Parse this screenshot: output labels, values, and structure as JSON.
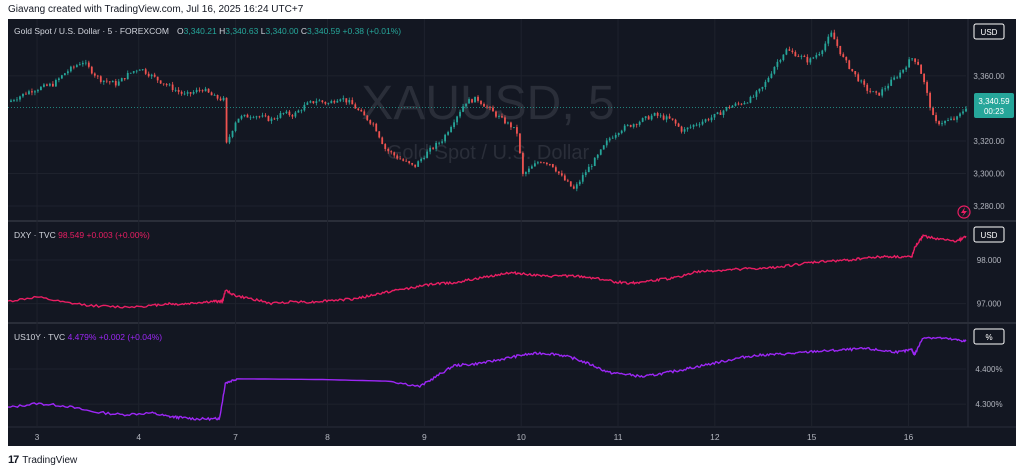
{
  "header": {
    "text": "Giavang created with TradingView.com, Jul 16, 2025 16:24 UTC+7"
  },
  "footer": {
    "brand": "TradingView",
    "logo_glyph": "17"
  },
  "watermark": {
    "symbol": "XAUUSD, 5",
    "name": "Gold Spot / U.S. Dollar"
  },
  "colors": {
    "background": "#131722",
    "grid": "#1e222d",
    "text": "#b2b5be",
    "up": "#26a69a",
    "down": "#ef5350",
    "dxy": "#e91e63",
    "us10y": "#9c27f5",
    "last_price": "#26a69a",
    "label_bg": "#ffffff"
  },
  "x_axis": {
    "ticks": [
      "3",
      "4",
      "7",
      "8",
      "9",
      "10",
      "11",
      "12",
      "15",
      "16"
    ]
  },
  "chart_data": [
    {
      "type": "line",
      "style": "candlestick",
      "title": "Gold Spot / U.S. Dollar · 5 · FOREXCOM",
      "legend": {
        "o_label": "O",
        "o": "3,340.21",
        "h_label": "H",
        "h": "3,340.63",
        "l_label": "L",
        "l": "3,340.00",
        "c_label": "C",
        "c": "3,340.59",
        "change": "+0.38 (+0.01%)"
      },
      "unit": "USD",
      "y_ticks": [
        "3,360.00",
        "3,320.00",
        "3,300.00",
        "3,280.00"
      ],
      "ylim": [
        3272,
        3395
      ],
      "last_price_label": "3,340.59",
      "countdown": "00:23",
      "x": [
        0,
        0.4,
        0.8,
        1.0,
        1.3,
        1.6,
        1.9,
        2.1,
        2.3,
        2.6,
        2.9,
        3.1,
        3.4,
        3.6,
        3.8,
        3.82,
        4.0,
        4.3,
        4.6,
        4.8,
        5.0,
        5.2,
        5.4,
        5.6,
        5.8,
        6.0,
        6.2,
        6.4,
        6.6,
        6.8,
        7.0,
        7.1,
        7.3,
        7.6,
        7.8,
        8.0,
        8.2,
        8.4,
        8.6,
        8.8,
        8.9,
        9.0,
        9.3,
        9.5,
        9.7,
        9.9,
        10.1,
        10.3,
        10.5,
        10.7,
        10.9,
        11.1,
        11.3,
        11.6,
        11.8,
        12.0,
        12.2,
        12.4,
        12.6,
        12.8,
        13.0,
        13.2,
        13.4,
        13.6,
        13.8,
        14.0,
        14.2,
        14.4,
        14.6,
        14.8,
        15.0,
        15.2,
        15.4,
        15.6,
        15.8,
        15.9,
        16.0,
        16.2,
        16.4,
        16.6,
        16.75
      ],
      "y": [
        3344,
        3351,
        3355,
        3362,
        3369,
        3358,
        3355,
        3361,
        3365,
        3358,
        3352,
        3348,
        3352,
        3347,
        3345,
        3318,
        3334,
        3336,
        3333,
        3337,
        3336,
        3342,
        3345,
        3343,
        3347,
        3343,
        3336,
        3330,
        3315,
        3310,
        3306,
        3304,
        3312,
        3321,
        3333,
        3344,
        3346,
        3340,
        3334,
        3329,
        3325,
        3299,
        3308,
        3306,
        3297,
        3290,
        3301,
        3310,
        3321,
        3327,
        3330,
        3333,
        3336,
        3333,
        3326,
        3330,
        3333,
        3336,
        3341,
        3343,
        3346,
        3353,
        3366,
        3376,
        3373,
        3369,
        3375,
        3386,
        3371,
        3361,
        3352,
        3348,
        3355,
        3362,
        3371,
        3369,
        3358,
        3331,
        3332,
        3334,
        3341
      ]
    },
    {
      "type": "line",
      "title": "DXY · TVC",
      "legend": {
        "value": "98.549",
        "change": "+0.003 (+0.00%)"
      },
      "unit": "USD",
      "y_ticks": [
        "98.000",
        "97.000"
      ],
      "ylim": [
        96.6,
        98.85
      ],
      "x": [
        0,
        0.5,
        1.0,
        1.5,
        2.0,
        2.5,
        2.8,
        3.0,
        3.3,
        3.6,
        3.75,
        3.8,
        4.0,
        4.3,
        4.6,
        5.0,
        5.3,
        5.6,
        6.0,
        6.3,
        6.6,
        6.9,
        7.2,
        7.5,
        7.8,
        8.1,
        8.4,
        8.7,
        8.9,
        9.1,
        9.4,
        9.7,
        10.0,
        10.3,
        10.6,
        10.9,
        11.1,
        11.4,
        11.7,
        12.0,
        12.3,
        12.6,
        12.9,
        13.2,
        13.5,
        13.8,
        14.1,
        14.4,
        14.7,
        15.0,
        15.3,
        15.6,
        15.8,
        15.85,
        16.0,
        16.3,
        16.6,
        16.75
      ],
      "y": [
        97.05,
        97.15,
        97.02,
        96.95,
        96.92,
        96.95,
        97.0,
        96.98,
        97.02,
        97.05,
        97.05,
        97.3,
        97.17,
        97.1,
        97.0,
        97.05,
        97.03,
        97.07,
        97.1,
        97.17,
        97.26,
        97.33,
        97.4,
        97.46,
        97.48,
        97.55,
        97.62,
        97.7,
        97.7,
        97.67,
        97.62,
        97.64,
        97.62,
        97.58,
        97.5,
        97.47,
        97.5,
        97.55,
        97.6,
        97.72,
        97.75,
        97.77,
        97.8,
        97.8,
        97.85,
        97.9,
        97.95,
        97.98,
        98.0,
        98.05,
        98.08,
        98.07,
        98.07,
        98.28,
        98.55,
        98.48,
        98.43,
        98.55
      ]
    },
    {
      "type": "line",
      "title": "US10Y · TVC",
      "legend": {
        "value": "4.479%",
        "change": "+0.002 (+0.04%)"
      },
      "unit": "%",
      "y_ticks": [
        "4.400%",
        "4.300%"
      ],
      "ylim": [
        4.235,
        4.525
      ],
      "x": [
        0,
        0.5,
        1.0,
        1.5,
        2.0,
        2.5,
        2.8,
        3.0,
        3.3,
        3.6,
        3.7,
        3.8,
        4.0,
        5.5,
        6.7,
        7.2,
        7.5,
        7.8,
        8.1,
        8.4,
        8.7,
        9.0,
        9.3,
        9.6,
        9.9,
        10.2,
        10.5,
        10.8,
        11.1,
        11.4,
        11.7,
        12.0,
        12.3,
        12.6,
        12.9,
        13.2,
        13.5,
        13.8,
        14.1,
        14.4,
        14.7,
        15.0,
        15.3,
        15.6,
        15.8,
        15.85,
        16.0,
        16.3,
        16.6,
        16.75
      ],
      "y": [
        4.29,
        4.302,
        4.295,
        4.278,
        4.27,
        4.275,
        4.265,
        4.262,
        4.258,
        4.258,
        4.26,
        4.36,
        4.372,
        4.37,
        4.365,
        4.35,
        4.38,
        4.41,
        4.413,
        4.42,
        4.43,
        4.44,
        4.445,
        4.442,
        4.43,
        4.412,
        4.39,
        4.385,
        4.378,
        4.386,
        4.395,
        4.405,
        4.415,
        4.425,
        4.435,
        4.44,
        4.442,
        4.445,
        4.45,
        4.452,
        4.455,
        4.458,
        4.452,
        4.448,
        4.455,
        4.44,
        4.49,
        4.488,
        4.482,
        4.479
      ]
    }
  ]
}
